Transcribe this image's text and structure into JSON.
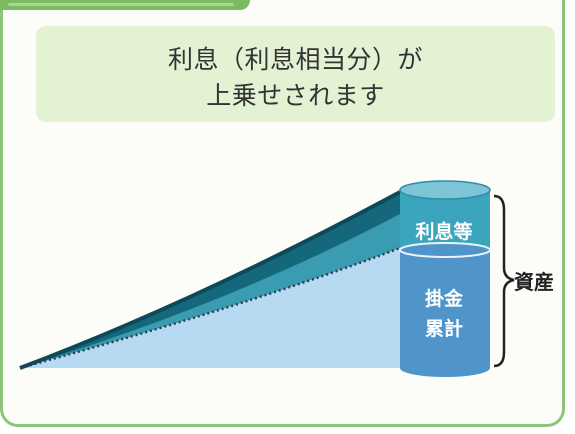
{
  "banner": {
    "line1": "利息（利息相当分）が",
    "line2": "上乗せされます"
  },
  "cylinder": {
    "interest_label": "利息等",
    "cumulative_label_1": "掛金",
    "cumulative_label_2": "累計"
  },
  "bracket": {
    "label": "資産"
  },
  "colors": {
    "frame_border": "#8cc47a",
    "banner_bg": "#e4f2d4",
    "interest_dark": "#0f6f86",
    "interest_mid": "#3a9cb0",
    "contribution_light": "#b8d9f2",
    "cylinder_body": "#4f95c9",
    "cylinder_top": "#3aa5bd"
  }
}
